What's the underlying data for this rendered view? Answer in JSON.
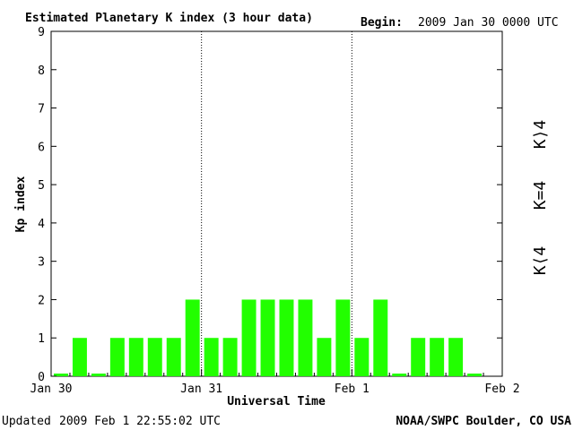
{
  "header": {
    "title": "Estimated Planetary K index (3 hour data)",
    "begin_label": "Begin:",
    "begin_value": "2009 Jan 30 0000 UTC"
  },
  "footer": {
    "updated_label": "Updated",
    "updated_value": "2009 Feb  1 22:55:02 UTC",
    "source": "NOAA/SWPC Boulder, CO USA"
  },
  "legend": [
    {
      "label": "K⟩4",
      "color": "#ff2a00"
    },
    {
      "label": "K=4",
      "color": "#ffd000"
    },
    {
      "label": "K⟨4",
      "color": "#22e000"
    }
  ],
  "chart_data": {
    "type": "bar",
    "ylabel": "Kp index",
    "xlabel": "Universal Time",
    "ylim": [
      0,
      9
    ],
    "yticks": [
      "0",
      "1",
      "2",
      "3",
      "4",
      "5",
      "6",
      "7",
      "8",
      "9"
    ],
    "x_labels": [
      "Jan 30",
      "Jan 31",
      "Feb 1",
      "Feb 2"
    ],
    "day_dividers": [
      "Jan 31",
      "Feb 1"
    ],
    "interval_hours": 3,
    "bar_color": "#22ff00",
    "values": [
      0,
      1,
      0,
      1,
      1,
      1,
      1,
      2,
      1,
      1,
      2,
      2,
      2,
      2,
      1,
      2,
      1,
      2,
      0,
      1,
      1,
      1,
      0
    ]
  }
}
